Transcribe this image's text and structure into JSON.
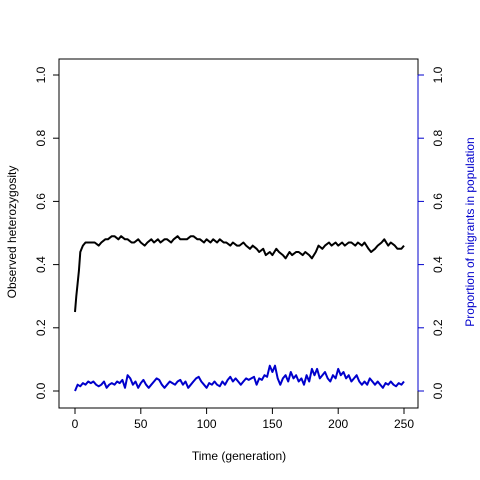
{
  "chart_data": {
    "type": "line",
    "title": "",
    "xlabel": "Time (generation)",
    "ylabel": "Observed heterozygosity",
    "y2label": "Proportion of migrants in population",
    "xlim": [
      0,
      250
    ],
    "ylim": [
      0,
      1
    ],
    "y2lim": [
      0,
      1
    ],
    "x_ticks": [
      0,
      50,
      100,
      150,
      200,
      250
    ],
    "y_ticks": [
      0.0,
      0.2,
      0.4,
      0.6,
      0.8,
      1.0
    ],
    "y_tick_labels": [
      "0.0",
      "0.2",
      "0.4",
      "0.6",
      "0.8",
      "1.0"
    ],
    "x_tick_labels": [
      "0",
      "50",
      "100",
      "150",
      "200",
      "250"
    ],
    "grid": false,
    "colors": {
      "heterozygosity": "#000000",
      "migrants": "#0000cc"
    },
    "series": [
      {
        "axis": "left",
        "x": [
          0,
          1,
          2,
          3,
          4,
          5,
          6,
          8,
          10,
          12,
          15,
          18,
          20,
          23,
          25,
          28,
          30,
          33,
          35,
          38,
          40,
          43,
          45,
          48,
          50,
          53,
          55,
          58,
          60,
          63,
          65,
          68,
          70,
          73,
          75,
          78,
          80,
          83,
          85,
          88,
          90,
          93,
          95,
          98,
          100,
          103,
          105,
          108,
          110,
          113,
          115,
          118,
          120,
          123,
          125,
          128,
          130,
          133,
          135,
          138,
          140,
          143,
          145,
          148,
          150,
          153,
          155,
          158,
          160,
          163,
          165,
          168,
          170,
          173,
          175,
          178,
          180,
          183,
          185,
          188,
          190,
          193,
          195,
          198,
          200,
          203,
          205,
          208,
          210,
          213,
          215,
          218,
          220,
          223,
          225,
          228,
          230,
          233,
          235,
          238,
          240,
          243,
          245,
          248,
          250
        ],
        "values": [
          0.25,
          0.3,
          0.34,
          0.38,
          0.44,
          0.45,
          0.46,
          0.47,
          0.47,
          0.47,
          0.47,
          0.46,
          0.47,
          0.48,
          0.48,
          0.49,
          0.49,
          0.48,
          0.49,
          0.48,
          0.48,
          0.47,
          0.47,
          0.48,
          0.47,
          0.46,
          0.47,
          0.48,
          0.47,
          0.48,
          0.47,
          0.48,
          0.48,
          0.47,
          0.48,
          0.49,
          0.48,
          0.48,
          0.48,
          0.49,
          0.49,
          0.48,
          0.48,
          0.47,
          0.48,
          0.47,
          0.48,
          0.47,
          0.48,
          0.47,
          0.47,
          0.46,
          0.47,
          0.46,
          0.46,
          0.47,
          0.46,
          0.45,
          0.46,
          0.45,
          0.44,
          0.45,
          0.43,
          0.44,
          0.43,
          0.45,
          0.44,
          0.43,
          0.42,
          0.44,
          0.43,
          0.44,
          0.44,
          0.43,
          0.44,
          0.43,
          0.42,
          0.44,
          0.46,
          0.45,
          0.46,
          0.47,
          0.46,
          0.47,
          0.46,
          0.47,
          0.46,
          0.47,
          0.47,
          0.46,
          0.47,
          0.46,
          0.47,
          0.45,
          0.44,
          0.45,
          0.46,
          0.47,
          0.48,
          0.46,
          0.47,
          0.46,
          0.45,
          0.45,
          0.46
        ]
      },
      {
        "axis": "right",
        "x": [
          0,
          2,
          4,
          6,
          8,
          10,
          12,
          14,
          16,
          18,
          20,
          22,
          24,
          26,
          28,
          30,
          32,
          34,
          36,
          38,
          40,
          42,
          44,
          46,
          48,
          50,
          52,
          54,
          56,
          58,
          60,
          62,
          64,
          66,
          68,
          70,
          72,
          74,
          76,
          78,
          80,
          82,
          84,
          86,
          88,
          90,
          92,
          94,
          96,
          98,
          100,
          102,
          104,
          106,
          108,
          110,
          112,
          114,
          116,
          118,
          120,
          122,
          124,
          126,
          128,
          130,
          132,
          134,
          136,
          138,
          140,
          142,
          144,
          146,
          148,
          150,
          152,
          154,
          156,
          158,
          160,
          162,
          164,
          166,
          168,
          170,
          172,
          174,
          176,
          178,
          180,
          182,
          184,
          186,
          188,
          190,
          192,
          194,
          196,
          198,
          200,
          202,
          204,
          206,
          208,
          210,
          212,
          214,
          216,
          218,
          220,
          222,
          224,
          226,
          228,
          230,
          232,
          234,
          236,
          238,
          240,
          242,
          244,
          246,
          248,
          250
        ],
        "values": [
          0.0,
          0.02,
          0.015,
          0.025,
          0.02,
          0.03,
          0.025,
          0.03,
          0.02,
          0.015,
          0.02,
          0.03,
          0.01,
          0.02,
          0.025,
          0.02,
          0.03,
          0.025,
          0.035,
          0.01,
          0.05,
          0.04,
          0.02,
          0.03,
          0.01,
          0.025,
          0.035,
          0.02,
          0.01,
          0.02,
          0.03,
          0.04,
          0.035,
          0.02,
          0.01,
          0.02,
          0.03,
          0.025,
          0.02,
          0.03,
          0.035,
          0.02,
          0.03,
          0.01,
          0.02,
          0.03,
          0.04,
          0.045,
          0.03,
          0.02,
          0.01,
          0.025,
          0.02,
          0.03,
          0.02,
          0.015,
          0.03,
          0.02,
          0.035,
          0.045,
          0.03,
          0.04,
          0.03,
          0.02,
          0.03,
          0.04,
          0.035,
          0.04,
          0.045,
          0.02,
          0.04,
          0.035,
          0.05,
          0.045,
          0.08,
          0.06,
          0.08,
          0.04,
          0.02,
          0.04,
          0.05,
          0.03,
          0.06,
          0.04,
          0.05,
          0.03,
          0.04,
          0.02,
          0.05,
          0.03,
          0.07,
          0.05,
          0.07,
          0.04,
          0.05,
          0.06,
          0.04,
          0.03,
          0.05,
          0.04,
          0.07,
          0.05,
          0.06,
          0.04,
          0.05,
          0.03,
          0.04,
          0.05,
          0.03,
          0.02,
          0.03,
          0.02,
          0.04,
          0.03,
          0.02,
          0.03,
          0.02,
          0.01,
          0.025,
          0.02,
          0.03,
          0.02,
          0.015,
          0.025,
          0.02,
          0.03
        ]
      }
    ]
  }
}
